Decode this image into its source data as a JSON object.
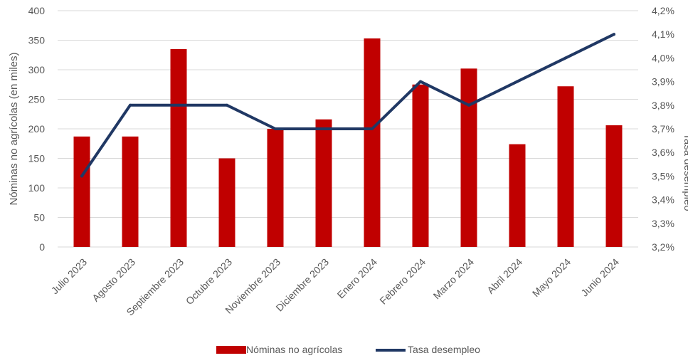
{
  "chart_data": {
    "type": "bar",
    "categories": [
      "Julio 2023",
      "Agosto 2023",
      "Septiembre 2023",
      "Octubre 2023",
      "Noviembre 2023",
      "Diciembre 2023",
      "Enero 2024",
      "Febrero 2024",
      "Marzo 2024",
      "Abril 2024",
      "Mayo 2024",
      "Junio 2024"
    ],
    "series": [
      {
        "name": "Nóminas no agrícolas",
        "type": "bar",
        "axis": "left",
        "color": "#C00000",
        "values": [
          187,
          187,
          335,
          150,
          200,
          216,
          353,
          275,
          302,
          174,
          272,
          206
        ]
      },
      {
        "name": "Tasa desempleo",
        "type": "line",
        "axis": "right",
        "color": "#203864",
        "values": [
          3.5,
          3.8,
          3.8,
          3.8,
          3.7,
          3.7,
          3.7,
          3.9,
          3.8,
          3.9,
          4.0,
          4.1
        ]
      }
    ],
    "ylabel": "Nóminas no agrícolas (en miles)",
    "ylabel_right": "Tasa desempleo",
    "ylim": [
      0,
      400
    ],
    "ylim_right": [
      3.2,
      4.2
    ],
    "yticks": [
      "0",
      "50",
      "100",
      "150",
      "200",
      "250",
      "300",
      "350",
      "400"
    ],
    "yticks_right": [
      "3,2%",
      "3,3%",
      "3,4%",
      "3,5%",
      "3,6%",
      "3,7%",
      "3,8%",
      "3,9%",
      "4,0%",
      "4,1%",
      "4,2%"
    ],
    "grid": true,
    "legend": "bottom"
  }
}
